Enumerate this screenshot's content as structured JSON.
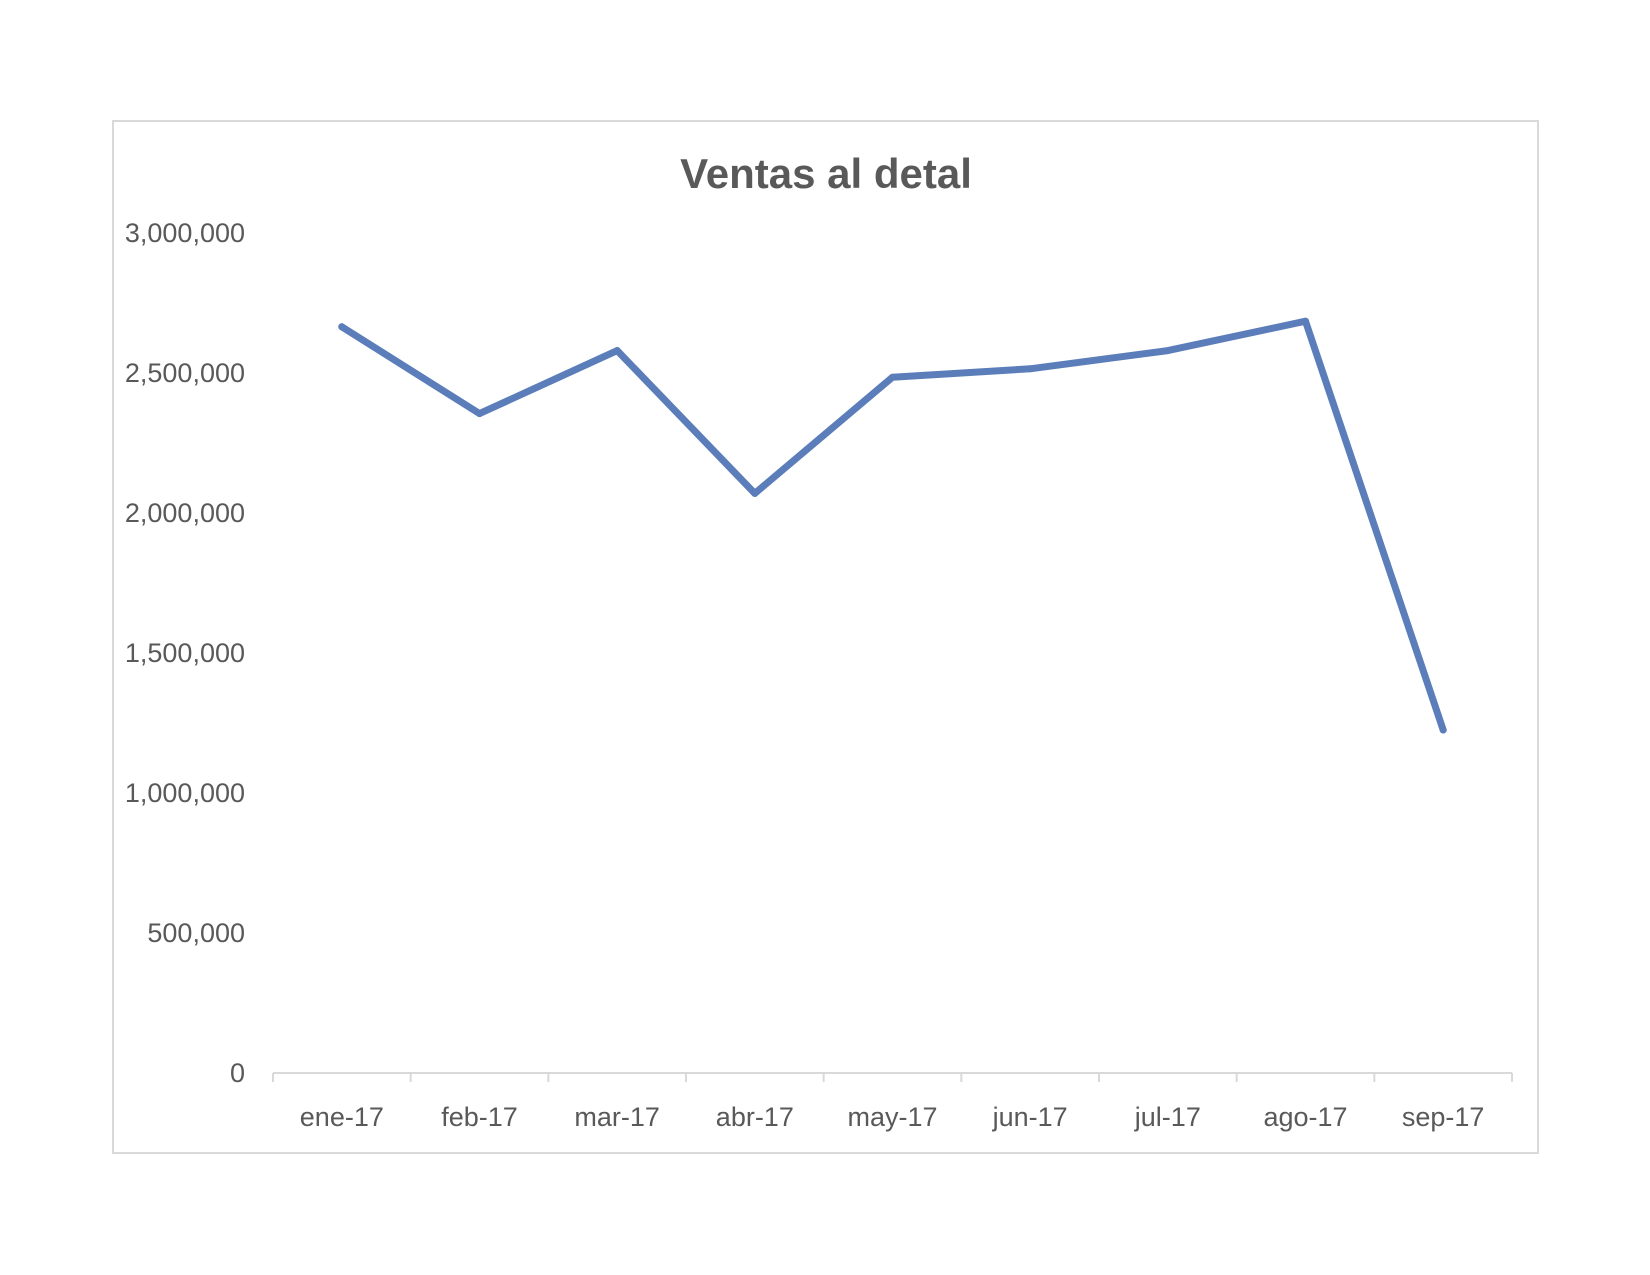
{
  "chart_data": {
    "type": "line",
    "title": "Ventas al detal",
    "xlabel": "",
    "ylabel": "",
    "categories": [
      "ene-17",
      "feb-17",
      "mar-17",
      "abr-17",
      "may-17",
      "jun-17",
      "jul-17",
      "ago-17",
      "sep-17"
    ],
    "series": [
      {
        "values": [
          2665000,
          2355000,
          2580000,
          2070000,
          2485000,
          2515000,
          2580000,
          2685000,
          1225000
        ],
        "color": "#5b7dba"
      }
    ],
    "yticks": [
      "0",
      "500,000",
      "1,000,000",
      "1,500,000",
      "2,000,000",
      "2,500,000",
      "3,000,000"
    ],
    "ylim": [
      0,
      3000000
    ],
    "grid": false,
    "legend": "none"
  }
}
